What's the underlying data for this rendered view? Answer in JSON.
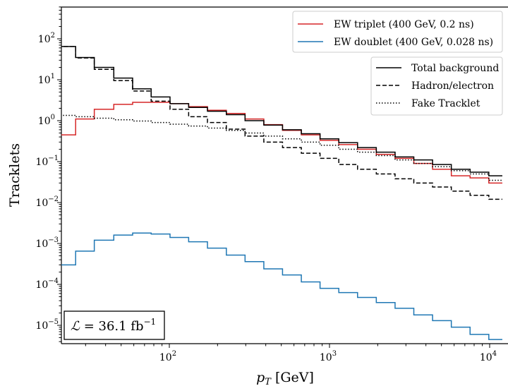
{
  "chart_data": {
    "type": "line",
    "xlabel": "pT [GeV]",
    "ylabel": "Tracklets",
    "xscale": "log",
    "yscale": "log",
    "xlim": [
      20,
      12000
    ],
    "ylim": [
      4e-06,
      500
    ],
    "x_tick_labels": [
      "10^2",
      "10^3",
      "10^4"
    ],
    "y_tick_labels": [
      "10^-5",
      "10^-4",
      "10^-3",
      "10^-2",
      "10^-1",
      "10^0",
      "10^1",
      "10^2"
    ],
    "bin_edges": [
      20,
      26,
      34,
      45,
      59,
      77,
      101,
      132,
      173,
      227,
      297,
      389,
      509,
      667,
      873,
      1143,
      1497,
      1960,
      2567,
      3361,
      4401,
      5763,
      7546,
      9880,
      12000
    ],
    "series": [
      {
        "name": "EW triplet (400 GeV, 0.2 ns)",
        "group": "signal",
        "style": "solid",
        "color": "#d62728",
        "values": [
          0.45,
          1.1,
          1.9,
          2.5,
          2.8,
          2.8,
          2.6,
          2.2,
          1.8,
          1.5,
          1.1,
          0.8,
          0.58,
          0.45,
          0.33,
          0.26,
          0.2,
          0.15,
          0.12,
          0.09,
          0.065,
          0.045,
          0.04,
          0.03
        ]
      },
      {
        "name": "EW doublet (400 GeV, 0.028 ns)",
        "group": "signal",
        "style": "solid",
        "color": "#1f77b4",
        "values": [
          0.0003,
          0.00065,
          0.0012,
          0.0016,
          0.0018,
          0.0017,
          0.0014,
          0.0011,
          0.00077,
          0.00052,
          0.00036,
          0.00024,
          0.00017,
          0.000115,
          8e-05,
          6.3e-05,
          4.8e-05,
          3.6e-05,
          2.6e-05,
          1.8e-05,
          1.3e-05,
          9e-06,
          6e-06,
          4.5e-06
        ]
      },
      {
        "name": "Total background",
        "group": "background",
        "style": "solid",
        "color": "#000000",
        "values": [
          65,
          35,
          20,
          11,
          6,
          3.8,
          2.6,
          2.1,
          1.7,
          1.4,
          1.0,
          0.78,
          0.6,
          0.48,
          0.36,
          0.29,
          0.22,
          0.17,
          0.13,
          0.11,
          0.085,
          0.065,
          0.055,
          0.045
        ]
      },
      {
        "name": "Hadron/electron",
        "group": "background",
        "style": "dashed",
        "color": "#000000",
        "values": [
          65,
          34,
          18,
          9.5,
          5.3,
          3.0,
          1.9,
          1.25,
          0.9,
          0.62,
          0.42,
          0.3,
          0.22,
          0.16,
          0.12,
          0.085,
          0.065,
          0.05,
          0.038,
          0.03,
          0.024,
          0.019,
          0.015,
          0.012
        ]
      },
      {
        "name": "Fake Tracklet",
        "group": "background",
        "style": "dotted",
        "color": "#000000",
        "values": [
          1.35,
          1.25,
          1.15,
          1.05,
          0.98,
          0.9,
          0.82,
          0.74,
          0.66,
          0.58,
          0.5,
          0.42,
          0.36,
          0.3,
          0.25,
          0.2,
          0.17,
          0.14,
          0.11,
          0.09,
          0.075,
          0.06,
          0.05,
          0.035
        ]
      }
    ],
    "legend_signal_placement": "top-right",
    "legend_background_placement": "right, below signal legend",
    "annotation": "L = 36.1 fb^-1",
    "annotation_placement": "bottom-left",
    "grid": false
  },
  "labels": {
    "xlabel_main": "p",
    "xlabel_sub": "T",
    "xlabel_unit": " [GeV]",
    "ylabel": "Tracklets",
    "lumi_symbol": "ℒ",
    "lumi_eq": " = 36.1 fb",
    "lumi_exp": "−1"
  }
}
